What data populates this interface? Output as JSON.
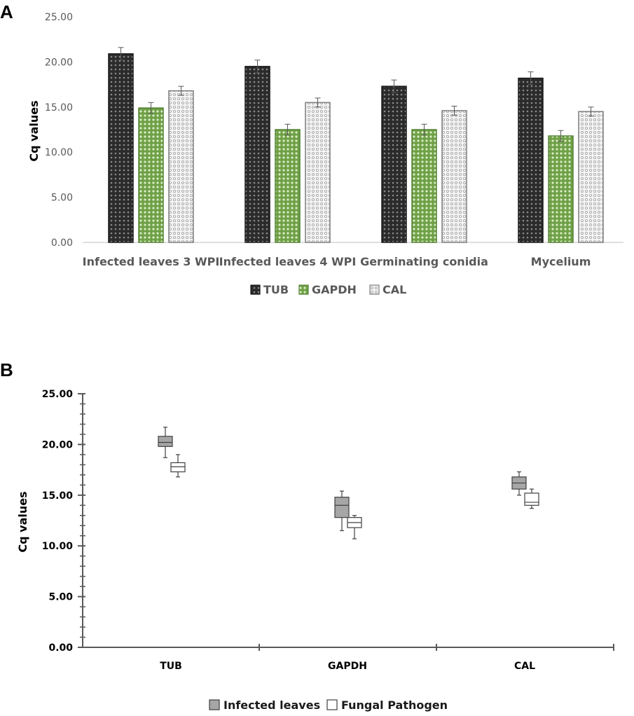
{
  "chart_data": [
    {
      "panel": "A",
      "type": "bar",
      "ylabel": "Cq values",
      "xlabel": "",
      "ylim": [
        0,
        25
      ],
      "yticks": [
        "0.00",
        "5.00",
        "10.00",
        "15.00",
        "20.00",
        "25.00"
      ],
      "grid": false,
      "legend_position": "bottom",
      "categories": [
        "Infected leaves 3 WPI",
        "Infected leaves 4 WPI",
        "Germinating conidia",
        "Mycelium"
      ],
      "series": [
        {
          "name": "TUB",
          "values": [
            20.9,
            19.5,
            17.3,
            18.2
          ],
          "errors": [
            0.7,
            0.7,
            0.7,
            0.7
          ],
          "color": "#1a1a1a",
          "fill": "#3a3a3a"
        },
        {
          "name": "GAPDH",
          "values": [
            14.9,
            12.5,
            12.5,
            11.8
          ],
          "errors": [
            0.6,
            0.6,
            0.6,
            0.6
          ],
          "color": "#548235",
          "fill": "#8fbc6a"
        },
        {
          "name": "CAL",
          "values": [
            16.8,
            15.5,
            14.6,
            14.5
          ],
          "errors": [
            0.5,
            0.5,
            0.5,
            0.5
          ],
          "color": "#7f7f7f",
          "fill": "#e8e8e8"
        }
      ]
    },
    {
      "panel": "B",
      "type": "box",
      "ylabel": "Cq values",
      "xlabel": "",
      "ylim": [
        0,
        25
      ],
      "yticks": [
        "0.00",
        "5.00",
        "10.00",
        "15.00",
        "20.00",
        "25.00"
      ],
      "grid": false,
      "legend_position": "bottom",
      "categories": [
        "TUB",
        "GAPDH",
        "CAL"
      ],
      "series": [
        {
          "name": "Infected leaves",
          "color": "#a6a6a6",
          "boxes": [
            {
              "min": 18.7,
              "q1": 19.8,
              "median": 20.2,
              "q3": 20.8,
              "max": 21.7
            },
            {
              "min": 11.5,
              "q1": 12.8,
              "median": 14.0,
              "q3": 14.8,
              "max": 15.4
            },
            {
              "min": 15.0,
              "q1": 15.6,
              "median": 16.2,
              "q3": 16.8,
              "max": 17.3
            }
          ]
        },
        {
          "name": "Fungal Pathogen",
          "color": "#ffffff",
          "boxes": [
            {
              "min": 16.8,
              "q1": 17.3,
              "median": 17.8,
              "q3": 18.2,
              "max": 19.0
            },
            {
              "min": 10.7,
              "q1": 11.8,
              "median": 12.3,
              "q3": 12.8,
              "max": 13.0
            },
            {
              "min": 13.7,
              "q1": 14.0,
              "median": 14.3,
              "q3": 15.2,
              "max": 15.6
            }
          ]
        }
      ]
    }
  ]
}
